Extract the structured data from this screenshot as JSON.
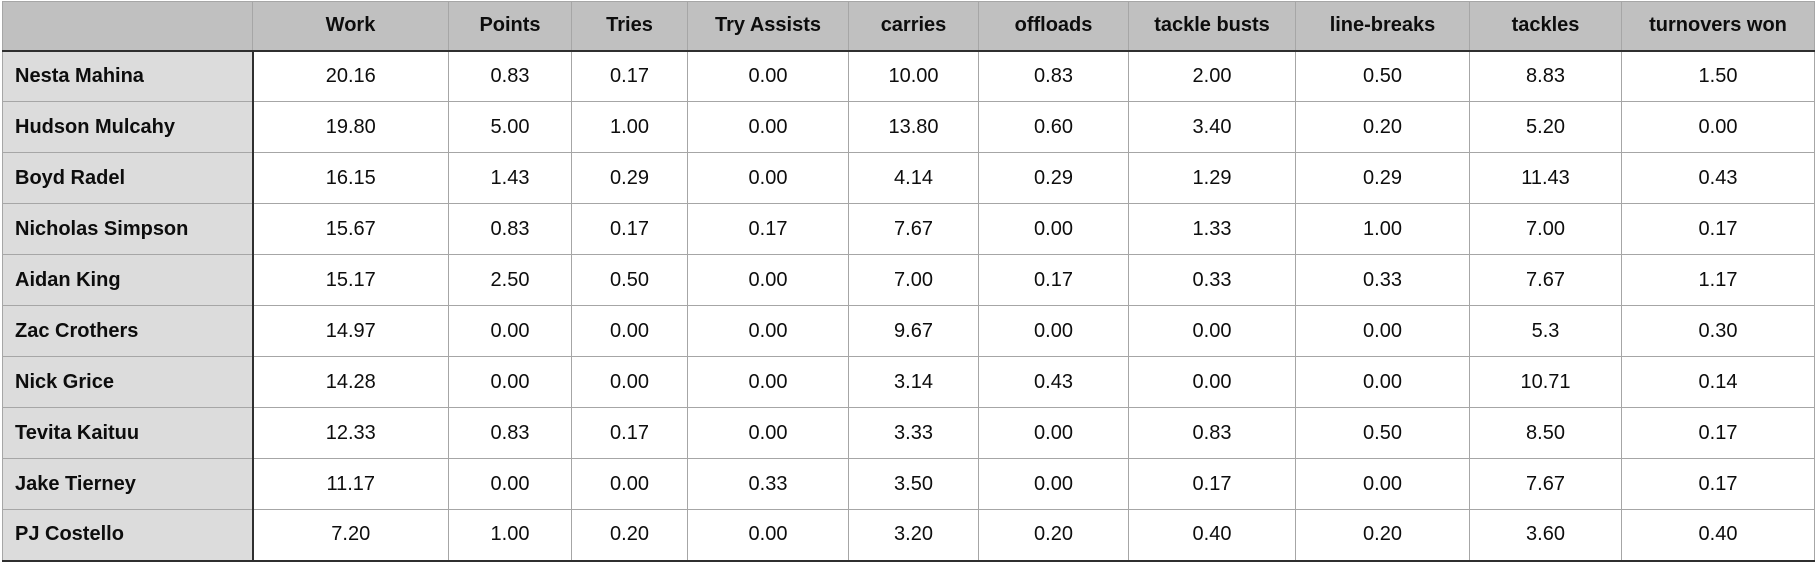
{
  "table": {
    "columns": [
      "",
      "Work",
      "Points",
      "Tries",
      "Try Assists",
      "carries",
      "offloads",
      "tackle busts",
      "line-breaks",
      "tackles",
      "turnovers won"
    ],
    "rows": [
      {
        "name": "Nesta Mahina",
        "values": [
          "20.16",
          "0.83",
          "0.17",
          "0.00",
          "10.00",
          "0.83",
          "2.00",
          "0.50",
          "8.83",
          "1.50"
        ]
      },
      {
        "name": "Hudson Mulcahy",
        "values": [
          "19.80",
          "5.00",
          "1.00",
          "0.00",
          "13.80",
          "0.60",
          "3.40",
          "0.20",
          "5.20",
          "0.00"
        ]
      },
      {
        "name": "Boyd Radel",
        "values": [
          "16.15",
          "1.43",
          "0.29",
          "0.00",
          "4.14",
          "0.29",
          "1.29",
          "0.29",
          "11.43",
          "0.43"
        ]
      },
      {
        "name": "Nicholas Simpson",
        "values": [
          "15.67",
          "0.83",
          "0.17",
          "0.17",
          "7.67",
          "0.00",
          "1.33",
          "1.00",
          "7.00",
          "0.17"
        ]
      },
      {
        "name": "Aidan King",
        "values": [
          "15.17",
          "2.50",
          "0.50",
          "0.00",
          "7.00",
          "0.17",
          "0.33",
          "0.33",
          "7.67",
          "1.17"
        ]
      },
      {
        "name": "Zac Crothers",
        "values": [
          "14.97",
          "0.00",
          "0.00",
          "0.00",
          "9.67",
          "0.00",
          "0.00",
          "0.00",
          "5.3",
          "0.30"
        ]
      },
      {
        "name": "Nick Grice",
        "values": [
          "14.28",
          "0.00",
          "0.00",
          "0.00",
          "3.14",
          "0.43",
          "0.00",
          "0.00",
          "10.71",
          "0.14"
        ]
      },
      {
        "name": "Tevita Kaituu",
        "values": [
          "12.33",
          "0.83",
          "0.17",
          "0.00",
          "3.33",
          "0.00",
          "0.83",
          "0.50",
          "8.50",
          "0.17"
        ]
      },
      {
        "name": "Jake Tierney",
        "values": [
          "11.17",
          "0.00",
          "0.00",
          "0.33",
          "3.50",
          "0.00",
          "0.17",
          "0.00",
          "7.67",
          "0.17"
        ]
      },
      {
        "name": "PJ Costello",
        "values": [
          "7.20",
          "1.00",
          "0.20",
          "0.00",
          "3.20",
          "0.20",
          "0.40",
          "0.20",
          "3.60",
          "0.40"
        ]
      }
    ]
  },
  "colors": {
    "header_bg": "#c0c0c0",
    "name_col_bg": "#dcdcdc",
    "grid_line": "#a6a6a6",
    "heavy_line": "#2f2f2f"
  }
}
